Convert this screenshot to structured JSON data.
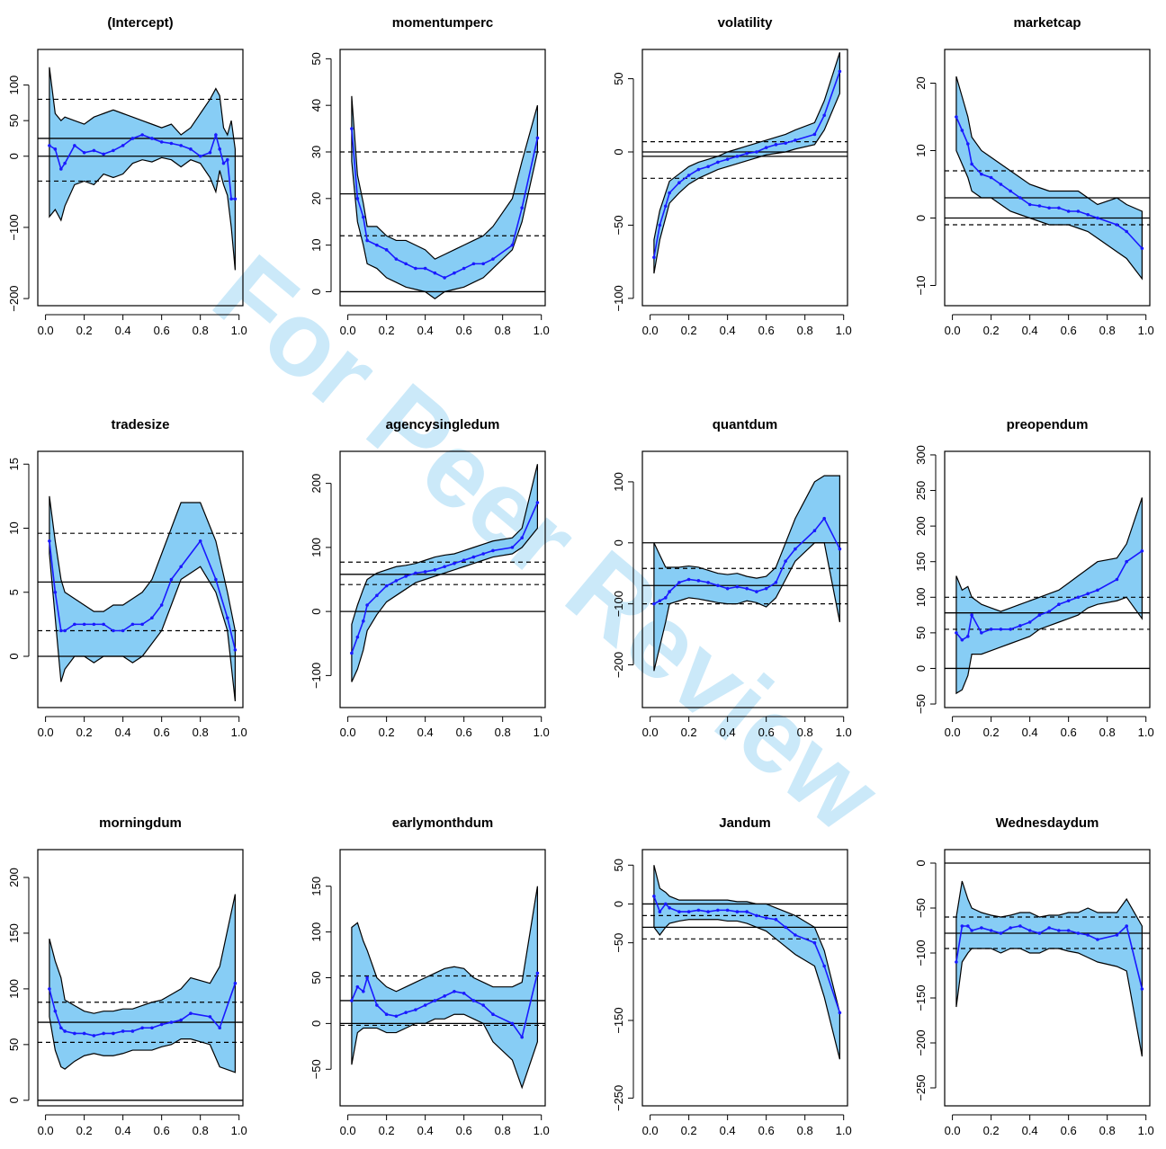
{
  "watermark": "For Peer Review",
  "chart_data": [
    {
      "type": "line",
      "title": "(Intercept)",
      "ylim": [
        -210,
        150
      ],
      "yticks": [
        -200,
        -100,
        0,
        50,
        100
      ],
      "lower": [
        -85,
        -75,
        -90,
        -70,
        -40,
        -35,
        -40,
        -25,
        -30,
        -25,
        -10,
        -5,
        -8,
        -2,
        -5,
        -15,
        -5,
        -10,
        -30,
        -50,
        -20,
        -40,
        -55,
        -100,
        -160
      ],
      "upper": [
        125,
        60,
        50,
        55,
        50,
        45,
        55,
        60,
        65,
        60,
        55,
        50,
        45,
        40,
        45,
        30,
        40,
        60,
        80,
        95,
        85,
        40,
        30,
        50,
        10
      ],
      "x": [
        0.02,
        0.05,
        0.08,
        0.1,
        0.15,
        0.2,
        0.25,
        0.3,
        0.35,
        0.4,
        0.45,
        0.5,
        0.55,
        0.6,
        0.65,
        0.7,
        0.75,
        0.8,
        0.85,
        0.88,
        0.9,
        0.92,
        0.94,
        0.96,
        0.98
      ],
      "estimate": [
        15,
        10,
        -18,
        -10,
        15,
        5,
        8,
        3,
        8,
        15,
        25,
        30,
        25,
        20,
        18,
        15,
        10,
        0,
        5,
        30,
        10,
        -10,
        -5,
        -60,
        -60
      ],
      "ols": 25,
      "ci": [
        -35,
        80
      ]
    },
    {
      "type": "line",
      "title": "momentumperc",
      "ylim": [
        -3,
        52
      ],
      "yticks": [
        0,
        10,
        20,
        30,
        40,
        50
      ],
      "lower": [
        28,
        15,
        10,
        6,
        5,
        3,
        2,
        1,
        0.5,
        0,
        -1.5,
        0,
        0.5,
        1,
        2,
        3,
        5,
        9,
        15,
        30
      ],
      "upper": [
        42,
        25,
        19,
        14,
        14,
        12,
        11,
        11,
        10,
        9,
        7,
        8,
        9,
        10,
        11,
        12,
        14,
        20,
        28,
        40
      ],
      "x": [
        0.02,
        0.05,
        0.08,
        0.1,
        0.15,
        0.2,
        0.25,
        0.3,
        0.35,
        0.4,
        0.45,
        0.5,
        0.55,
        0.6,
        0.65,
        0.7,
        0.75,
        0.85,
        0.9,
        0.98
      ],
      "estimate": [
        35,
        20,
        16,
        11,
        10,
        9,
        7,
        6,
        5,
        5,
        4,
        3,
        4,
        5,
        6,
        6,
        7,
        10,
        18,
        33
      ],
      "ols": 21,
      "ci": [
        12,
        30
      ]
    },
    {
      "type": "line",
      "title": "volatility",
      "ylim": [
        -105,
        70
      ],
      "yticks": [
        -100,
        -50,
        0,
        50
      ],
      "lower": [
        -83,
        -60,
        -45,
        -35,
        -28,
        -22,
        -18,
        -15,
        -12,
        -10,
        -8,
        -6,
        -4,
        -2,
        -1,
        0,
        2,
        5,
        15,
        40
      ],
      "upper": [
        -60,
        -40,
        -28,
        -20,
        -15,
        -10,
        -7,
        -5,
        -3,
        0,
        2,
        4,
        6,
        8,
        10,
        12,
        15,
        20,
        35,
        68
      ],
      "x": [
        0.02,
        0.05,
        0.08,
        0.1,
        0.15,
        0.2,
        0.25,
        0.3,
        0.35,
        0.4,
        0.45,
        0.5,
        0.55,
        0.6,
        0.65,
        0.7,
        0.75,
        0.85,
        0.9,
        0.98
      ],
      "estimate": [
        -72,
        -50,
        -37,
        -28,
        -21,
        -16,
        -12,
        -10,
        -7,
        -5,
        -3,
        -1,
        0,
        3,
        5,
        6,
        8,
        12,
        25,
        55
      ],
      "ols": -3,
      "ci": [
        -18,
        7
      ]
    },
    {
      "type": "line",
      "title": "marketcap",
      "ylim": [
        -13,
        25
      ],
      "yticks": [
        -10,
        0,
        10,
        20
      ],
      "lower": [
        10,
        8,
        6,
        4,
        3,
        3,
        2,
        1,
        0.5,
        0,
        -0.5,
        -1,
        -1,
        -1,
        -1.5,
        -2,
        -3,
        -5,
        -6,
        -9
      ],
      "upper": [
        21,
        18,
        15,
        12,
        10,
        9,
        8,
        7,
        6,
        5,
        4.5,
        4,
        4,
        4,
        4,
        3,
        2,
        3,
        2,
        1
      ],
      "x": [
        0.02,
        0.05,
        0.08,
        0.1,
        0.15,
        0.2,
        0.25,
        0.3,
        0.35,
        0.4,
        0.45,
        0.5,
        0.55,
        0.6,
        0.65,
        0.7,
        0.75,
        0.85,
        0.9,
        0.98
      ],
      "estimate": [
        15,
        13,
        11,
        8,
        6.5,
        6,
        5,
        4,
        3,
        2,
        1.8,
        1.5,
        1.5,
        1,
        1,
        0.5,
        0,
        -1,
        -2,
        -4.5
      ],
      "ols": 3,
      "ci": [
        -1,
        7
      ]
    },
    {
      "type": "line",
      "title": "tradesize",
      "ylim": [
        -4,
        16
      ],
      "yticks": [
        0,
        5,
        10,
        15
      ],
      "lower": [
        8,
        3,
        -2,
        -1,
        0,
        0,
        -0.5,
        0,
        0,
        0,
        -0.5,
        0,
        1,
        2,
        4,
        6,
        7,
        5,
        2,
        -3.5
      ],
      "upper": [
        12.5,
        9,
        6,
        5,
        4.5,
        4,
        3.5,
        3.5,
        4,
        4,
        4.5,
        5,
        6,
        8,
        10,
        12,
        12,
        9,
        5,
        2
      ],
      "x": [
        0.02,
        0.05,
        0.08,
        0.1,
        0.15,
        0.2,
        0.25,
        0.3,
        0.35,
        0.4,
        0.45,
        0.5,
        0.55,
        0.6,
        0.65,
        0.7,
        0.8,
        0.88,
        0.94,
        0.98
      ],
      "estimate": [
        9,
        5,
        2,
        2,
        2.5,
        2.5,
        2.5,
        2.5,
        2,
        2,
        2.5,
        2.5,
        3,
        4,
        6,
        7,
        9,
        6,
        3,
        0.5
      ],
      "ols": 5.8,
      "ci": [
        2,
        9.6
      ]
    },
    {
      "type": "line",
      "title": "agencysingledum",
      "ylim": [
        -150,
        250
      ],
      "yticks": [
        -100,
        0,
        100,
        200
      ],
      "lower": [
        -110,
        -90,
        -60,
        -30,
        -5,
        15,
        25,
        35,
        45,
        50,
        55,
        60,
        65,
        70,
        75,
        80,
        85,
        90,
        100,
        130
      ],
      "upper": [
        -20,
        10,
        35,
        50,
        60,
        65,
        70,
        72,
        75,
        80,
        85,
        88,
        90,
        95,
        100,
        105,
        110,
        115,
        130,
        230
      ],
      "x": [
        0.02,
        0.05,
        0.08,
        0.1,
        0.15,
        0.2,
        0.25,
        0.3,
        0.35,
        0.4,
        0.45,
        0.5,
        0.55,
        0.6,
        0.65,
        0.7,
        0.75,
        0.85,
        0.9,
        0.98
      ],
      "estimate": [
        -65,
        -40,
        -15,
        10,
        25,
        40,
        48,
        55,
        60,
        62,
        65,
        70,
        75,
        80,
        85,
        90,
        95,
        100,
        115,
        170
      ],
      "ols": 58,
      "ci": [
        42,
        77
      ]
    },
    {
      "type": "line",
      "title": "quantdum",
      "ylim": [
        -270,
        150
      ],
      "yticks": [
        -200,
        -100,
        0,
        100
      ],
      "lower": [
        -210,
        -170,
        -130,
        -100,
        -95,
        -90,
        -92,
        -95,
        -98,
        -100,
        -100,
        -95,
        -98,
        -105,
        -90,
        -60,
        -30,
        0,
        0,
        -130
      ],
      "upper": [
        0,
        -20,
        -40,
        -40,
        -40,
        -38,
        -40,
        -45,
        -50,
        -52,
        -50,
        -55,
        -58,
        -55,
        -40,
        0,
        40,
        100,
        110,
        110
      ],
      "x": [
        0.02,
        0.05,
        0.08,
        0.1,
        0.15,
        0.2,
        0.25,
        0.3,
        0.35,
        0.4,
        0.45,
        0.5,
        0.55,
        0.6,
        0.65,
        0.7,
        0.75,
        0.85,
        0.9,
        0.98
      ],
      "estimate": [
        -100,
        -95,
        -90,
        -80,
        -65,
        -60,
        -62,
        -65,
        -70,
        -75,
        -72,
        -75,
        -80,
        -75,
        -65,
        -30,
        -10,
        20,
        40,
        -10
      ],
      "ols": -70,
      "ci": [
        -100,
        -42
      ]
    },
    {
      "type": "line",
      "title": "preopendum",
      "ylim": [
        -55,
        305
      ],
      "yticks": [
        -50,
        0,
        50,
        100,
        150,
        200,
        250,
        300
      ],
      "lower": [
        -35,
        -30,
        -10,
        20,
        20,
        25,
        30,
        35,
        40,
        45,
        55,
        60,
        65,
        70,
        75,
        85,
        90,
        95,
        100,
        70
      ],
      "upper": [
        130,
        110,
        115,
        100,
        90,
        85,
        80,
        85,
        90,
        95,
        100,
        105,
        110,
        120,
        130,
        140,
        150,
        155,
        175,
        240
      ],
      "x": [
        0.02,
        0.05,
        0.08,
        0.1,
        0.15,
        0.2,
        0.25,
        0.3,
        0.35,
        0.4,
        0.45,
        0.5,
        0.55,
        0.6,
        0.65,
        0.7,
        0.75,
        0.85,
        0.9,
        0.98
      ],
      "estimate": [
        50,
        40,
        45,
        75,
        50,
        55,
        55,
        55,
        60,
        65,
        75,
        80,
        90,
        95,
        100,
        105,
        110,
        125,
        150,
        165
      ],
      "ols": 78,
      "ci": [
        55,
        100
      ]
    },
    {
      "type": "line",
      "title": "morningdum",
      "ylim": [
        -5,
        225
      ],
      "yticks": [
        0,
        50,
        100,
        150,
        200
      ],
      "lower": [
        75,
        45,
        30,
        28,
        35,
        40,
        42,
        40,
        40,
        42,
        45,
        45,
        45,
        48,
        50,
        55,
        55,
        50,
        30,
        25
      ],
      "upper": [
        145,
        125,
        110,
        90,
        85,
        80,
        78,
        80,
        80,
        82,
        82,
        85,
        88,
        90,
        95,
        100,
        110,
        105,
        120,
        185
      ],
      "x": [
        0.02,
        0.05,
        0.08,
        0.1,
        0.15,
        0.2,
        0.25,
        0.3,
        0.35,
        0.4,
        0.45,
        0.5,
        0.55,
        0.6,
        0.65,
        0.7,
        0.75,
        0.85,
        0.9,
        0.98
      ],
      "estimate": [
        100,
        80,
        65,
        62,
        60,
        60,
        58,
        60,
        60,
        62,
        62,
        65,
        65,
        68,
        70,
        72,
        78,
        75,
        65,
        105
      ],
      "ols": 70,
      "ci": [
        52,
        88
      ]
    },
    {
      "type": "line",
      "title": "earlymonthdum",
      "ylim": [
        -90,
        190
      ],
      "yticks": [
        -50,
        0,
        50,
        100,
        150
      ],
      "lower": [
        -45,
        -10,
        -5,
        -5,
        -5,
        -10,
        -10,
        -5,
        0,
        0,
        5,
        5,
        10,
        10,
        5,
        0,
        -20,
        -40,
        -70,
        -20
      ],
      "upper": [
        105,
        110,
        90,
        80,
        50,
        40,
        35,
        40,
        45,
        50,
        55,
        60,
        62,
        60,
        50,
        45,
        40,
        40,
        45,
        150
      ],
      "x": [
        0.02,
        0.05,
        0.08,
        0.1,
        0.15,
        0.2,
        0.25,
        0.3,
        0.35,
        0.4,
        0.45,
        0.5,
        0.55,
        0.6,
        0.65,
        0.7,
        0.75,
        0.85,
        0.9,
        0.98
      ],
      "estimate": [
        25,
        40,
        35,
        50,
        20,
        10,
        8,
        12,
        15,
        20,
        25,
        30,
        35,
        33,
        25,
        20,
        10,
        0,
        -15,
        55
      ],
      "ols": 25,
      "ci": [
        -2,
        52
      ]
    },
    {
      "type": "line",
      "title": "Jandum",
      "ylim": [
        -260,
        70
      ],
      "yticks": [
        -250,
        -150,
        -50,
        0,
        50
      ],
      "lower": [
        -30,
        -40,
        -30,
        -25,
        -22,
        -20,
        -20,
        -20,
        -20,
        -22,
        -22,
        -25,
        -30,
        -35,
        -45,
        -55,
        -65,
        -80,
        -120,
        -200
      ],
      "upper": [
        50,
        20,
        15,
        10,
        5,
        5,
        5,
        5,
        5,
        5,
        3,
        3,
        0,
        0,
        -5,
        -10,
        -15,
        -30,
        -60,
        -140
      ],
      "x": [
        0.02,
        0.05,
        0.08,
        0.1,
        0.15,
        0.2,
        0.25,
        0.3,
        0.35,
        0.4,
        0.45,
        0.5,
        0.55,
        0.6,
        0.65,
        0.7,
        0.75,
        0.85,
        0.9,
        0.98
      ],
      "estimate": [
        10,
        -10,
        0,
        -5,
        -10,
        -10,
        -8,
        -10,
        -8,
        -8,
        -10,
        -10,
        -15,
        -18,
        -20,
        -30,
        -40,
        -50,
        -80,
        -140
      ],
      "ols": -30,
      "ci": [
        -45,
        -15
      ]
    },
    {
      "type": "line",
      "title": "Wednesdaydum",
      "ylim": [
        -270,
        15
      ],
      "yticks": [
        -250,
        -200,
        -150,
        -100,
        -50,
        0
      ],
      "lower": [
        -160,
        -110,
        -100,
        -95,
        -95,
        -95,
        -100,
        -95,
        -95,
        -100,
        -100,
        -95,
        -95,
        -98,
        -100,
        -105,
        -110,
        -115,
        -120,
        -215
      ],
      "upper": [
        -60,
        -20,
        -40,
        -50,
        -55,
        -58,
        -60,
        -58,
        -55,
        -55,
        -60,
        -58,
        -58,
        -55,
        -55,
        -50,
        -55,
        -55,
        -40,
        -70
      ],
      "x": [
        0.02,
        0.05,
        0.08,
        0.1,
        0.15,
        0.2,
        0.25,
        0.3,
        0.35,
        0.4,
        0.45,
        0.5,
        0.55,
        0.6,
        0.65,
        0.7,
        0.75,
        0.85,
        0.9,
        0.98
      ],
      "estimate": [
        -110,
        -70,
        -70,
        -75,
        -72,
        -75,
        -78,
        -72,
        -70,
        -75,
        -78,
        -72,
        -75,
        -75,
        -78,
        -80,
        -85,
        -80,
        -70,
        -140
      ],
      "ols": -78,
      "ci": [
        -95,
        -60
      ]
    }
  ],
  "shared": {
    "xticks": [
      0.0,
      0.2,
      0.4,
      0.6,
      0.8,
      1.0
    ],
    "xticklabels": [
      "0.0",
      "0.2",
      "0.4",
      "0.6",
      "0.8",
      "1.0"
    ],
    "band_color": "#87cdf5",
    "line_color": "#1a1aff"
  }
}
